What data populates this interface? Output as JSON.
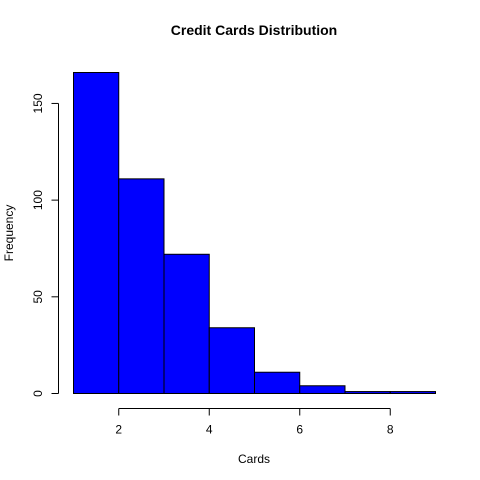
{
  "colors": {
    "bar_fill": "#0000ff",
    "bar_stroke": "#000000",
    "background": "#ffffff"
  },
  "chart_data": {
    "type": "bar",
    "title": "Credit Cards Distribution",
    "xlabel": "Cards",
    "ylabel": "Frequency",
    "bins": [
      {
        "x0": 1,
        "x1": 2,
        "count": 166
      },
      {
        "x0": 2,
        "x1": 3,
        "count": 111
      },
      {
        "x0": 3,
        "x1": 4,
        "count": 72
      },
      {
        "x0": 4,
        "x1": 5,
        "count": 34
      },
      {
        "x0": 5,
        "x1": 6,
        "count": 11
      },
      {
        "x0": 6,
        "x1": 7,
        "count": 4
      },
      {
        "x0": 7,
        "x1": 8,
        "count": 1
      },
      {
        "x0": 8,
        "x1": 9,
        "count": 1
      }
    ],
    "xlim": [
      1,
      9
    ],
    "ylim": [
      0,
      166
    ],
    "x_ticks": [
      2,
      4,
      6,
      8
    ],
    "y_ticks": [
      0,
      50,
      100,
      150
    ],
    "grid": false,
    "legend": "none"
  }
}
